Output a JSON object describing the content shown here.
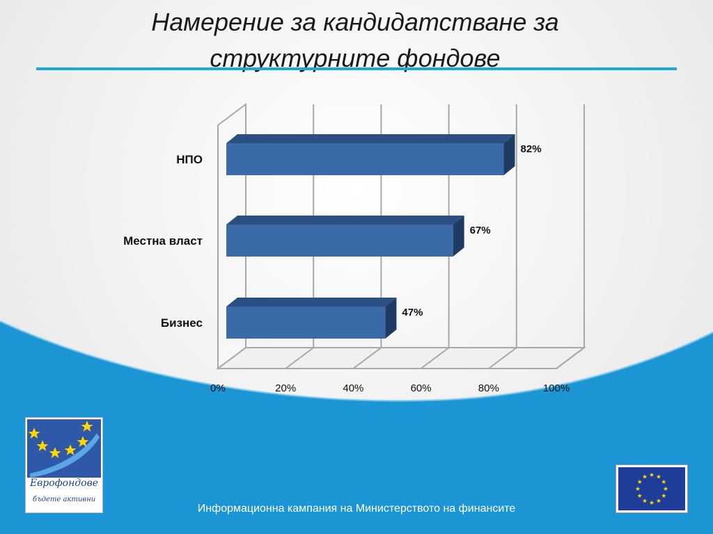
{
  "slide": {
    "title_line1": "Намерение за кандидатстване за",
    "title_line2": "структурните фондове",
    "footer": "Информационна кампания на Министерството на финансите"
  },
  "logo": {
    "name": "Еврофондове",
    "slogan": "бъдете активни"
  },
  "colors": {
    "accent_line": "#1aa8e0",
    "bar_front": "#3a6aa8",
    "bar_top": "#2c4f82",
    "bar_side": "#1f3b63",
    "wave_blue": "#1b95d3",
    "eu_blue": "#1d3d99",
    "eu_star": "#ffdd00"
  },
  "chart_data": {
    "type": "bar",
    "orientation": "horizontal",
    "style": "3d",
    "categories": [
      "НПО",
      "Местна власт",
      "Бизнес"
    ],
    "values": [
      82,
      67,
      47
    ],
    "value_labels": [
      "82%",
      "67%",
      "47%"
    ],
    "xlim": [
      0,
      100
    ],
    "x_ticks": [
      0,
      20,
      40,
      60,
      80,
      100
    ],
    "x_tick_labels": [
      "0%",
      "20%",
      "40%",
      "60%",
      "80%",
      "100%"
    ],
    "grid": true,
    "legend": "none"
  }
}
